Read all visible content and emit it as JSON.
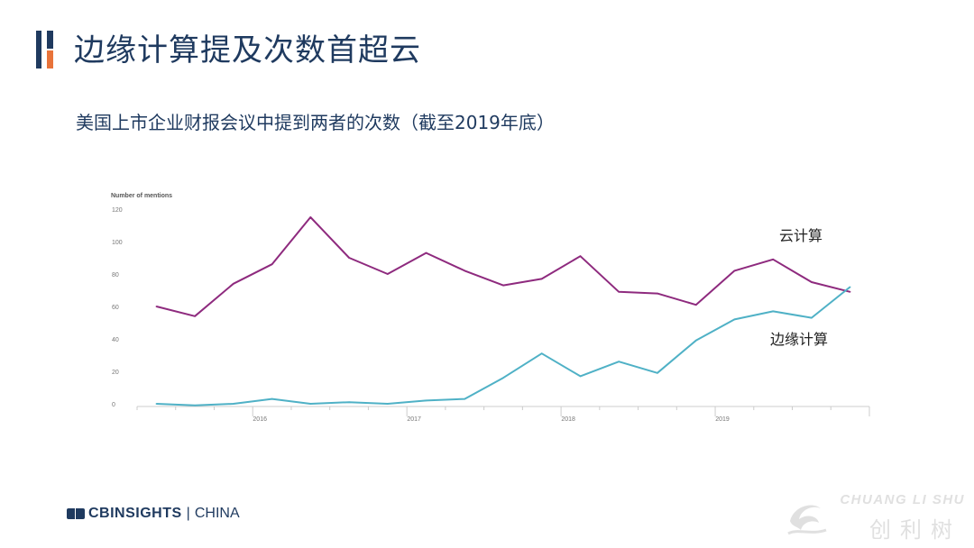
{
  "page": {
    "title": "边缘计算提及次数首超云",
    "subtitle": "美国上市企业财报会议中提到两者的次数（截至2019年底）"
  },
  "footer": {
    "brand_cb": "CBINSIGHTS",
    "brand_sep": "|",
    "brand_region": "CHINA"
  },
  "watermark": {
    "text_en": "CHUANG LI SHU",
    "text_cn": "创利树"
  },
  "chart_data": {
    "type": "line",
    "ylabel": "Number of mentions",
    "ylim": [
      0,
      120
    ],
    "yticks": [
      0,
      20,
      40,
      60,
      80,
      100,
      120
    ],
    "xlim": [
      2015.25,
      2020.0
    ],
    "xticks": [
      {
        "label": "2016",
        "value": 2016.0
      },
      {
        "label": "2017",
        "value": 2017.0
      },
      {
        "label": "2018",
        "value": 2018.0
      },
      {
        "label": "2019",
        "value": 2019.0
      }
    ],
    "colors": {
      "cloud": "#8e2a7e",
      "edge": "#4fb1c6",
      "axis": "#cccccc",
      "text": "#555555"
    },
    "series": [
      {
        "name": "云计算",
        "key": "cloud",
        "x": [
          2015.375,
          2015.625,
          2015.875,
          2016.125,
          2016.375,
          2016.625,
          2016.875,
          2017.125,
          2017.375,
          2017.625,
          2017.875,
          2018.125,
          2018.375,
          2018.625,
          2018.875,
          2019.125,
          2019.375,
          2019.625,
          2019.875
        ],
        "values": [
          60,
          54,
          74,
          86,
          115,
          90,
          80,
          93,
          82,
          73,
          77,
          91,
          69,
          68,
          61,
          82,
          89,
          75,
          69
        ]
      },
      {
        "name": "边缘计算",
        "key": "edge",
        "x": [
          2015.375,
          2015.625,
          2015.875,
          2016.125,
          2016.375,
          2016.625,
          2016.875,
          2017.125,
          2017.375,
          2017.625,
          2017.875,
          2018.125,
          2018.375,
          2018.625,
          2018.875,
          2019.125,
          2019.375,
          2019.625,
          2019.875
        ],
        "values": [
          0,
          -1,
          0,
          3,
          0,
          1,
          0,
          2,
          3,
          16,
          31,
          17,
          26,
          19,
          39,
          52,
          57,
          53,
          72
        ]
      }
    ]
  }
}
